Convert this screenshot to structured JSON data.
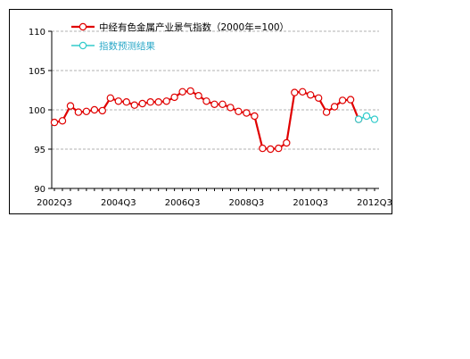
{
  "chart_data": {
    "type": "line",
    "title": "",
    "xlabel": "",
    "ylabel": "",
    "ylim": [
      90,
      110
    ],
    "yticks": [
      90,
      95,
      100,
      105,
      110
    ],
    "grid": "horizontal dashed",
    "legend_position": "top",
    "x_tick_labels": [
      "2002Q3",
      "2004Q3",
      "2006Q3",
      "2008Q3",
      "2010Q3",
      "2012Q3"
    ],
    "categories": [
      "2002Q3",
      "2002Q4",
      "2003Q1",
      "2003Q2",
      "2003Q3",
      "2003Q4",
      "2004Q1",
      "2004Q2",
      "2004Q3",
      "2004Q4",
      "2005Q1",
      "2005Q2",
      "2005Q3",
      "2005Q4",
      "2006Q1",
      "2006Q2",
      "2006Q3",
      "2006Q4",
      "2007Q1",
      "2007Q2",
      "2007Q3",
      "2007Q4",
      "2008Q1",
      "2008Q2",
      "2008Q3",
      "2008Q4",
      "2009Q1",
      "2009Q2",
      "2009Q3",
      "2009Q4",
      "2010Q1",
      "2010Q2",
      "2010Q3",
      "2010Q4",
      "2011Q1",
      "2011Q2",
      "2011Q3",
      "2011Q4",
      "2012Q1",
      "2012Q2",
      "2012Q3"
    ],
    "series": [
      {
        "name": "中经有色金属产业景气指数（2000年=100）",
        "color": "#e00000",
        "marker_fill": "#ffffff",
        "values": [
          98.4,
          98.6,
          100.5,
          99.7,
          99.8,
          100.0,
          99.9,
          101.5,
          101.1,
          101.0,
          100.6,
          100.8,
          101.0,
          101.0,
          101.1,
          101.6,
          102.3,
          102.4,
          101.8,
          101.1,
          100.7,
          100.7,
          100.3,
          99.8,
          99.6,
          99.2,
          95.1,
          95.0,
          95.1,
          95.8,
          102.2,
          102.3,
          101.9,
          101.5,
          99.7,
          100.4,
          101.2,
          101.3,
          98.8,
          null,
          null
        ]
      },
      {
        "name": "指数预测结果",
        "color": "#33cccc",
        "marker_fill": "#ffffff",
        "values": [
          null,
          null,
          null,
          null,
          null,
          null,
          null,
          null,
          null,
          null,
          null,
          null,
          null,
          null,
          null,
          null,
          null,
          null,
          null,
          null,
          null,
          null,
          null,
          null,
          null,
          null,
          null,
          null,
          null,
          null,
          null,
          null,
          null,
          null,
          null,
          null,
          null,
          null,
          98.8,
          99.2,
          98.8
        ]
      }
    ]
  }
}
